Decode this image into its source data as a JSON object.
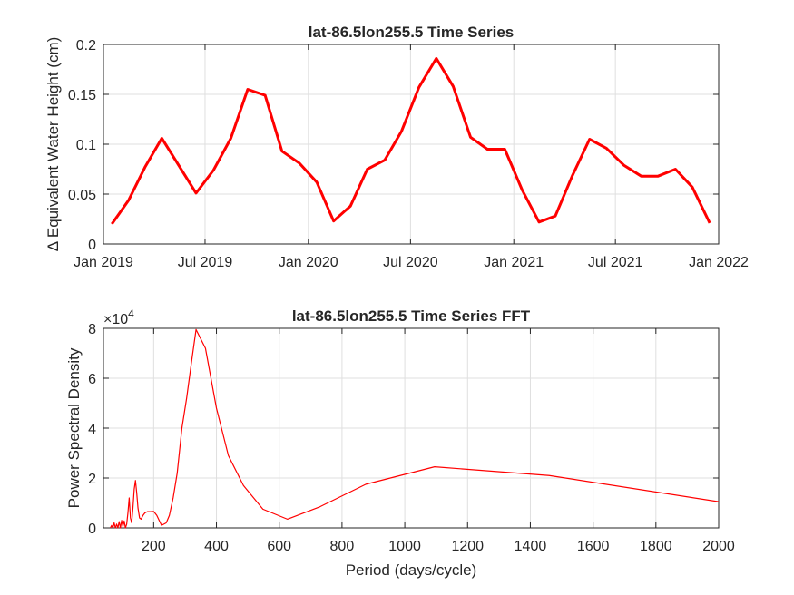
{
  "chart_data": [
    {
      "type": "line",
      "title": "lat-86.5lon255.5 Time Series",
      "ylabel": "Δ Equivalent Water Height (cm)",
      "xlabel": "",
      "x_type": "date",
      "xlim": [
        "2019-01-01",
        "2022-01-01"
      ],
      "ylim": [
        0,
        0.2
      ],
      "grid": true,
      "line_color": "#ff0000",
      "x_ticks": [
        "2019-01-01",
        "2019-07-01",
        "2020-01-01",
        "2020-07-01",
        "2021-01-01",
        "2021-07-01",
        "2022-01-01"
      ],
      "x_tick_labels": [
        "Jan 2019",
        "Jul 2019",
        "Jan 2020",
        "Jul 2020",
        "Jan 2021",
        "Jul 2021",
        "Jan 2022"
      ],
      "y_ticks": [
        0,
        0.05,
        0.1,
        0.15,
        0.2
      ],
      "y_tick_labels": [
        "0",
        "0.05",
        "0.1",
        "0.15",
        "0.2"
      ],
      "series": [
        {
          "x": [
            "2019-01-16",
            "2019-02-15",
            "2019-03-16",
            "2019-04-15",
            "2019-05-16",
            "2019-06-15",
            "2019-07-16",
            "2019-08-16",
            "2019-09-15",
            "2019-10-16",
            "2019-11-15",
            "2019-12-16",
            "2020-01-16",
            "2020-02-15",
            "2020-03-16",
            "2020-04-15",
            "2020-05-16",
            "2020-06-15",
            "2020-07-16",
            "2020-08-16",
            "2020-09-15",
            "2020-10-16",
            "2020-11-15",
            "2020-12-16",
            "2021-01-16",
            "2021-02-15",
            "2021-03-16",
            "2021-04-15",
            "2021-05-16",
            "2021-06-15",
            "2021-07-16",
            "2021-08-16",
            "2021-09-15",
            "2021-10-16",
            "2021-11-15",
            "2021-12-16"
          ],
          "values": [
            0.02,
            0.044,
            0.077,
            0.106,
            0.078,
            0.051,
            0.074,
            0.106,
            0.155,
            0.149,
            0.093,
            0.081,
            0.062,
            0.023,
            0.038,
            0.075,
            0.084,
            0.113,
            0.157,
            0.186,
            0.158,
            0.107,
            0.095,
            0.095,
            0.054,
            0.022,
            0.028,
            0.068,
            0.105,
            0.096,
            0.079,
            0.068,
            0.068,
            0.075,
            0.057,
            0.021
          ]
        }
      ]
    },
    {
      "type": "line",
      "title": "lat-86.5lon255.5 Time Series FFT",
      "ylabel": "Power Spectral Density",
      "xlabel": "Period (days/cycle)",
      "exponent_label": "×10",
      "exponent": "4",
      "xlim": [
        40,
        2000
      ],
      "ylim": [
        0,
        80000
      ],
      "grid": true,
      "line_color": "#ff0000",
      "x_ticks": [
        200,
        400,
        600,
        800,
        1000,
        1200,
        1400,
        1600,
        1800,
        2000
      ],
      "x_tick_labels": [
        "200",
        "400",
        "600",
        "800",
        "1000",
        "1200",
        "1400",
        "1600",
        "1800",
        "2000"
      ],
      "y_ticks": [
        0,
        20000,
        40000,
        60000,
        80000
      ],
      "y_tick_labels": [
        "0",
        "2",
        "4",
        "6",
        "8"
      ],
      "series": [
        {
          "x": [
            62,
            66,
            70,
            74,
            78,
            82,
            86,
            90,
            94,
            98,
            102,
            106,
            110,
            114,
            118,
            122,
            126,
            130,
            134,
            138,
            142,
            146,
            150,
            155,
            160,
            166,
            172,
            180,
            190,
            200,
            210,
            225,
            240,
            250,
            262,
            275,
            290,
            305,
            320,
            335,
            365,
            400,
            438,
            486,
            548,
            626,
            730,
            876,
            1095,
            1460,
            2000
          ],
          "values": [
            0,
            1000,
            0,
            2000,
            0,
            1500,
            0,
            2500,
            0,
            3000,
            500,
            2800,
            0,
            1500,
            6000,
            12000,
            4000,
            2000,
            8000,
            15500,
            19000,
            14000,
            8000,
            4000,
            3500,
            5000,
            6000,
            6500,
            6500,
            6600,
            5000,
            1000,
            2000,
            5000,
            12000,
            22000,
            40000,
            52000,
            66000,
            79500,
            72000,
            48000,
            29000,
            17000,
            7500,
            3500,
            8500,
            17500,
            24500,
            21000,
            10500
          ]
        }
      ]
    }
  ]
}
